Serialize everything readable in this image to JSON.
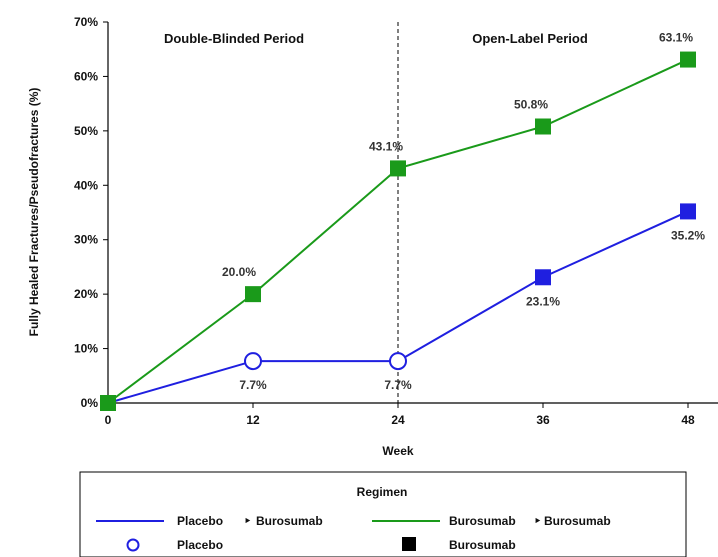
{
  "chart_data": {
    "type": "line",
    "xlabel": "Week",
    "ylabel": "Fully Healed Fractures/Pseudofractures (%)",
    "x": [
      0,
      12,
      24,
      36,
      48
    ],
    "x_ticks": [
      "0",
      "12",
      "24",
      "36",
      "48"
    ],
    "y_ticks": [
      "0%",
      "10%",
      "20%",
      "30%",
      "40%",
      "50%",
      "60%",
      "70%"
    ],
    "ylim": [
      0,
      70
    ],
    "xlim": [
      0,
      48
    ],
    "grid": false,
    "periods": [
      {
        "label": "Double-Blinded Period"
      },
      {
        "label": "Open-Label Period"
      }
    ],
    "period_divider_x": 24,
    "series": [
      {
        "name": "Placebo ‣ Burosumab",
        "color": "#1f1fe0",
        "values": [
          0,
          7.7,
          7.7,
          23.1,
          35.2
        ],
        "labels": [
          "",
          "7.7%",
          "7.7%",
          "23.1%",
          "35.2%"
        ],
        "markers": [
          "square",
          "circle",
          "circle",
          "square",
          "square"
        ]
      },
      {
        "name": "Burosumab ‣ Burosumab",
        "color": "#1a9a1a",
        "values": [
          0,
          20.0,
          43.1,
          50.8,
          63.1
        ],
        "labels": [
          "",
          "20.0%",
          "43.1%",
          "50.8%",
          "63.1%"
        ],
        "markers": [
          "square",
          "square",
          "square",
          "square",
          "square"
        ]
      }
    ],
    "legend": {
      "position": "bottom",
      "title": "Regimen",
      "line_items": [
        {
          "label_a": "Placebo",
          "label_b": "Burosumab",
          "color": "#1f1fe0"
        },
        {
          "label_a": "Burosumab",
          "label_b": "Burosumab",
          "color": "#1a9a1a"
        }
      ],
      "marker_items": [
        {
          "label": "Placebo",
          "marker": "open-circle",
          "color": "#1f1fe0"
        },
        {
          "label": "Burosumab",
          "marker": "filled-square",
          "color": "#000000"
        }
      ]
    }
  }
}
